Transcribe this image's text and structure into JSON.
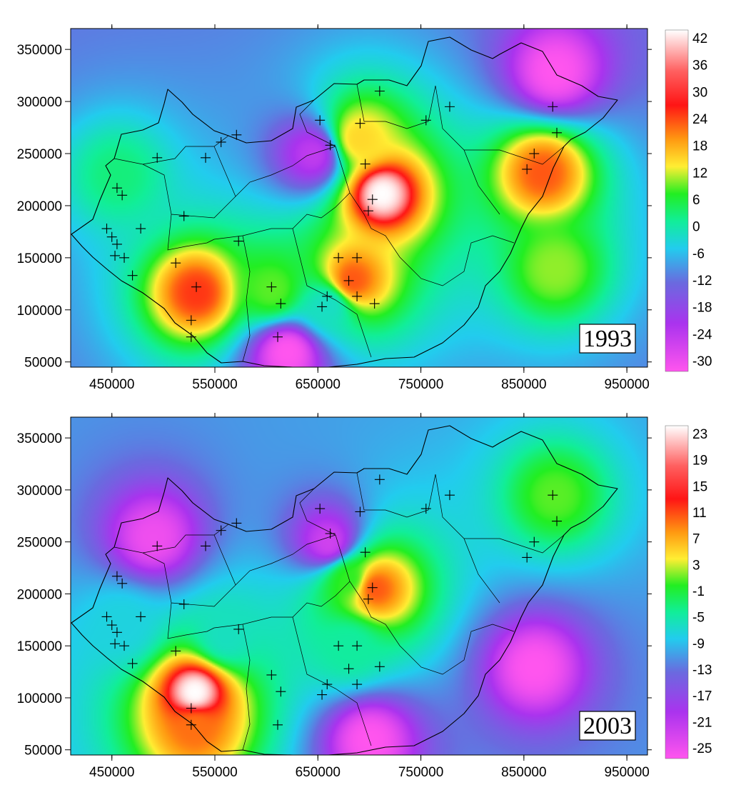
{
  "chart_data": [
    {
      "type": "heatmap",
      "title": "",
      "xlabel": "",
      "ylabel": "",
      "annotation": "1993",
      "xlim": [
        410000,
        970000
      ],
      "ylim": [
        45000,
        370000
      ],
      "x_ticks": [
        "450000",
        "550000",
        "650000",
        "750000",
        "850000",
        "950000"
      ],
      "y_ticks": [
        "50000",
        "100000",
        "150000",
        "200000",
        "250000",
        "300000",
        "350000"
      ],
      "colorbar_labels": [
        "42",
        "36",
        "30",
        "24",
        "18",
        "12",
        "6",
        "0",
        "-6",
        "-12",
        "-18",
        "-24",
        "-30"
      ],
      "colorbar_range": [
        -30,
        42
      ],
      "background_value": -14,
      "anomalies": [
        {
          "x": 712000,
          "y": 212000,
          "value": 42
        },
        {
          "x": 868000,
          "y": 232000,
          "value": 30
        },
        {
          "x": 532000,
          "y": 117000,
          "value": 32
        },
        {
          "x": 683000,
          "y": 129000,
          "value": 30
        },
        {
          "x": 690000,
          "y": 265000,
          "value": 20
        },
        {
          "x": 605000,
          "y": 120000,
          "value": 12
        },
        {
          "x": 880000,
          "y": 140000,
          "value": 14
        },
        {
          "x": 660000,
          "y": 105000,
          "value": -2
        },
        {
          "x": 455000,
          "y": 230000,
          "value": 4
        },
        {
          "x": 620000,
          "y": 60000,
          "value": -30
        },
        {
          "x": 880000,
          "y": 330000,
          "value": -30
        },
        {
          "x": 645000,
          "y": 250000,
          "value": -24
        }
      ],
      "stations": [
        [
          455000,
          217000
        ],
        [
          460000,
          210000
        ],
        [
          445000,
          178000
        ],
        [
          450000,
          170000
        ],
        [
          455000,
          163000
        ],
        [
          453000,
          152000
        ],
        [
          462000,
          150000
        ],
        [
          470000,
          133000
        ],
        [
          478000,
          178000
        ],
        [
          494000,
          246000
        ],
        [
          520000,
          190000
        ],
        [
          512000,
          145000
        ],
        [
          532000,
          122000
        ],
        [
          527000,
          90000
        ],
        [
          527000,
          74000
        ],
        [
          541000,
          246000
        ],
        [
          556000,
          261000
        ],
        [
          571000,
          268000
        ],
        [
          573000,
          166000
        ],
        [
          605000,
          122000
        ],
        [
          614000,
          106000
        ],
        [
          611000,
          74000
        ],
        [
          652000,
          282000
        ],
        [
          662000,
          258000
        ],
        [
          659000,
          113000
        ],
        [
          654000,
          103000
        ],
        [
          670000,
          150000
        ],
        [
          688000,
          150000
        ],
        [
          680000,
          128000
        ],
        [
          688000,
          113000
        ],
        [
          691000,
          279000
        ],
        [
          699000,
          195000
        ],
        [
          703000,
          206000
        ],
        [
          696000,
          240000
        ],
        [
          705000,
          106000
        ],
        [
          710000,
          310000
        ],
        [
          755000,
          282000
        ],
        [
          778000,
          295000
        ],
        [
          853000,
          235000
        ],
        [
          860000,
          250000
        ],
        [
          878000,
          295000
        ],
        [
          882000,
          270000
        ]
      ]
    },
    {
      "type": "heatmap",
      "title": "",
      "xlabel": "",
      "ylabel": "",
      "annotation": "2003",
      "xlim": [
        410000,
        970000
      ],
      "ylim": [
        45000,
        370000
      ],
      "x_ticks": [
        "450000",
        "550000",
        "650000",
        "750000",
        "850000",
        "950000"
      ],
      "y_ticks": [
        "50000",
        "100000",
        "150000",
        "200000",
        "250000",
        "300000",
        "350000"
      ],
      "colorbar_labels": [
        "23",
        "19",
        "15",
        "11",
        "7",
        "3",
        "-1",
        "-5",
        "-9",
        "-13",
        "-17",
        "-21",
        "-25"
      ],
      "colorbar_range": [
        -25,
        23
      ],
      "background_value": -12,
      "anomalies": [
        {
          "x": 530000,
          "y": 106000,
          "value": 23
        },
        {
          "x": 530000,
          "y": 72000,
          "value": 14
        },
        {
          "x": 705000,
          "y": 206000,
          "value": 15
        },
        {
          "x": 680000,
          "y": 215000,
          "value": 2
        },
        {
          "x": 880000,
          "y": 295000,
          "value": 3
        },
        {
          "x": 560000,
          "y": 160000,
          "value": -6
        },
        {
          "x": 460000,
          "y": 170000,
          "value": -8
        },
        {
          "x": 680000,
          "y": 150000,
          "value": -4
        },
        {
          "x": 700000,
          "y": 60000,
          "value": -25
        },
        {
          "x": 860000,
          "y": 130000,
          "value": -25
        },
        {
          "x": 490000,
          "y": 255000,
          "value": -24
        },
        {
          "x": 660000,
          "y": 250000,
          "value": -22
        }
      ],
      "stations": [
        [
          455000,
          217000
        ],
        [
          460000,
          210000
        ],
        [
          445000,
          178000
        ],
        [
          450000,
          170000
        ],
        [
          455000,
          163000
        ],
        [
          453000,
          152000
        ],
        [
          462000,
          150000
        ],
        [
          470000,
          133000
        ],
        [
          478000,
          178000
        ],
        [
          494000,
          246000
        ],
        [
          520000,
          190000
        ],
        [
          512000,
          145000
        ],
        [
          527000,
          90000
        ],
        [
          527000,
          74000
        ],
        [
          541000,
          246000
        ],
        [
          556000,
          261000
        ],
        [
          571000,
          268000
        ],
        [
          573000,
          166000
        ],
        [
          605000,
          122000
        ],
        [
          614000,
          106000
        ],
        [
          611000,
          74000
        ],
        [
          652000,
          282000
        ],
        [
          662000,
          258000
        ],
        [
          659000,
          113000
        ],
        [
          654000,
          103000
        ],
        [
          670000,
          150000
        ],
        [
          688000,
          150000
        ],
        [
          680000,
          128000
        ],
        [
          688000,
          113000
        ],
        [
          691000,
          279000
        ],
        [
          699000,
          195000
        ],
        [
          703000,
          206000
        ],
        [
          696000,
          240000
        ],
        [
          710000,
          130000
        ],
        [
          710000,
          310000
        ],
        [
          755000,
          282000
        ],
        [
          778000,
          295000
        ],
        [
          853000,
          235000
        ],
        [
          860000,
          250000
        ],
        [
          878000,
          295000
        ],
        [
          882000,
          270000
        ]
      ]
    }
  ],
  "colors": {
    "colormap": [
      "#ff55ee",
      "#aa33ee",
      "#6a6adf",
      "#22ccee",
      "#11ee99",
      "#22ee22",
      "#ffee33",
      "#ff9911",
      "#ff1515",
      "#ffffff"
    ]
  }
}
